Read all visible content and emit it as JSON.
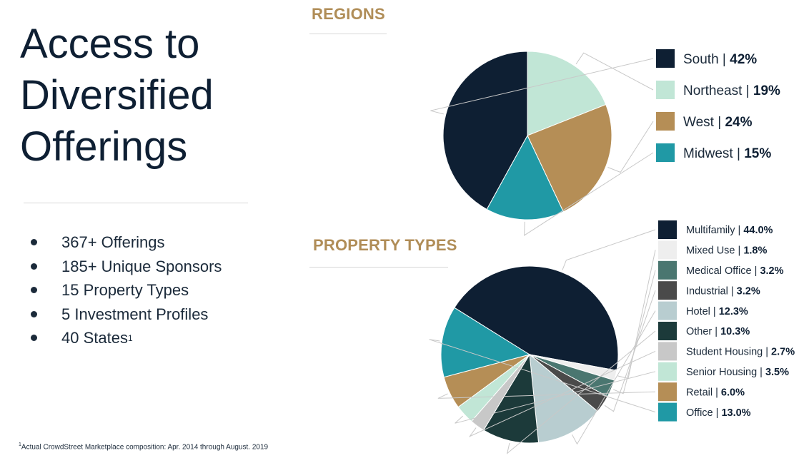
{
  "title": {
    "lines": [
      "Access to",
      "Diversified",
      "Offerings"
    ]
  },
  "bullets": [
    {
      "text": "367+ Offerings",
      "sup": ""
    },
    {
      "text": "185+ Unique Sponsors",
      "sup": ""
    },
    {
      "text": "15 Property Types",
      "sup": ""
    },
    {
      "text": "5 Investment Profiles",
      "sup": ""
    },
    {
      "text": "40 States",
      "sup": "1"
    }
  ],
  "footnote": {
    "sup": "1",
    "text": "Actual CrowdStreet Marketplace composition: Apr. 2014 through August. 2019"
  },
  "chart_data": [
    {
      "type": "pie",
      "title": "REGIONS",
      "categories": [
        "South",
        "Northeast",
        "West",
        "Midwest"
      ],
      "values": [
        42,
        19,
        24,
        15
      ],
      "value_labels": [
        "42%",
        "19%",
        "24%",
        "15%"
      ],
      "slice_order": [
        "Northeast",
        "West",
        "Midwest",
        "South"
      ],
      "colors": [
        "#0e1f33",
        "#c1e6d6",
        "#b58e56",
        "#2099a5"
      ],
      "legend_position": "right"
    },
    {
      "type": "pie",
      "title": "PROPERTY TYPES",
      "categories": [
        "Multifamily",
        "Mixed Use",
        "Medical Office",
        "Industrial",
        "Hotel",
        "Other",
        "Student Housing",
        "Senior Housing",
        "Retail",
        "Office"
      ],
      "values": [
        44.0,
        1.8,
        3.2,
        3.2,
        12.3,
        10.3,
        2.7,
        3.5,
        6.0,
        13.0
      ],
      "value_labels": [
        "44.0%",
        "1.8%",
        "3.2%",
        "3.2%",
        "12.3%",
        "10.3%",
        "2.7%",
        "3.5%",
        "6.0%",
        "13.0%"
      ],
      "colors": [
        "#0e1f33",
        "#eeeeee",
        "#4a7670",
        "#4a4a4a",
        "#b8cdd0",
        "#1c3a3a",
        "#c8c8c8",
        "#c1e6d6",
        "#b58e56",
        "#2099a5"
      ],
      "legend_position": "right"
    }
  ]
}
